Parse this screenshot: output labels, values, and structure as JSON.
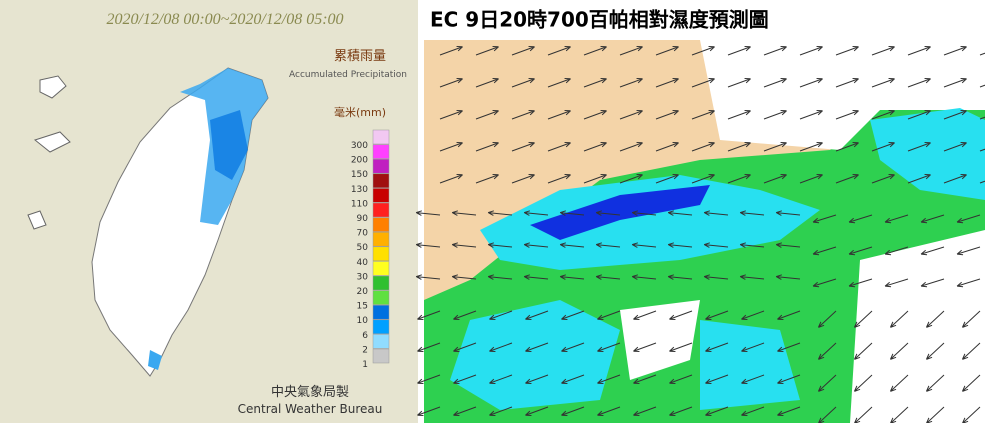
{
  "left_map": {
    "title": "2020/12/08 00:00~2020/12/08 05:00",
    "legend": {
      "title_zh": "累積雨量",
      "title_en": "Accumulated Precipitation",
      "unit": "毫米(mm)",
      "levels": [
        {
          "label": 300,
          "color": "#f2c8f2"
        },
        {
          "label": 200,
          "color": "#ff40ff"
        },
        {
          "label": 150,
          "color": "#c020c0"
        },
        {
          "label": 130,
          "color": "#a01010"
        },
        {
          "label": 110,
          "color": "#c80000"
        },
        {
          "label": 90,
          "color": "#ff2020"
        },
        {
          "label": 70,
          "color": "#ff8000"
        },
        {
          "label": 50,
          "color": "#ffb000"
        },
        {
          "label": 40,
          "color": "#ffe000"
        },
        {
          "label": 30,
          "color": "#ffff20"
        },
        {
          "label": 20,
          "color": "#30c030"
        },
        {
          "label": 15,
          "color": "#60e040"
        },
        {
          "label": 10,
          "color": "#0070e0"
        },
        {
          "label": 6,
          "color": "#00a0ff"
        },
        {
          "label": 2,
          "color": "#90dcff"
        },
        {
          "label": 1,
          "color": "#c8c8c8"
        }
      ]
    },
    "footer_zh": "中央氣象局製",
    "footer_en": "Central Weather Bureau"
  },
  "right_map": {
    "title": "EC 9日20時700百帕相對濕度預測圖"
  }
}
